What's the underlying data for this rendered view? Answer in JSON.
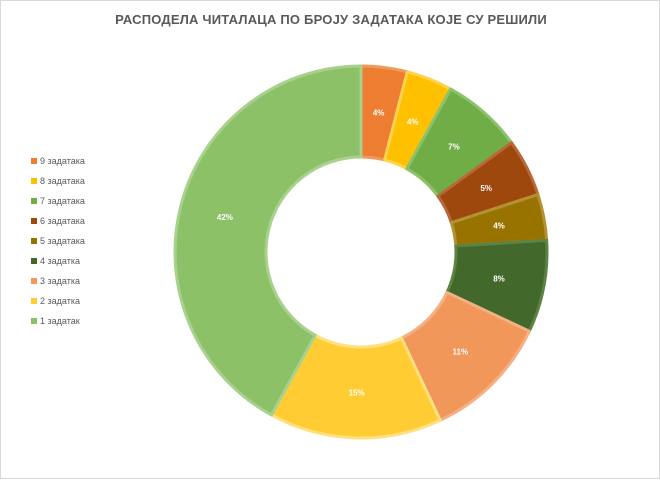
{
  "chart_data": {
    "type": "pie",
    "subtype": "doughnut",
    "title": "РАСПОДЕЛА ЧИТАЛАЦА ПО БРОЈУ ЗАДАТАКА КОЈЕ СУ РЕШИЛИ",
    "legend_position": "left",
    "slices": [
      {
        "label": "9 задатака",
        "value": 4,
        "display": "4%",
        "color": "#ED7D31",
        "edge": "#EF9A5C"
      },
      {
        "label": "8 задатака",
        "value": 4,
        "display": "4%",
        "color": "#FFC000",
        "edge": "#FFD24D"
      },
      {
        "label": "7 задатака",
        "value": 7,
        "display": "7%",
        "color": "#70AD47",
        "edge": "#8DC26B"
      },
      {
        "label": "6 задатака",
        "value": 5,
        "display": "5%",
        "color": "#9E480E",
        "edge": "#B8693A"
      },
      {
        "label": "5 задатака",
        "value": 4,
        "display": "4%",
        "color": "#997300",
        "edge": "#B39233"
      },
      {
        "label": "4 задатка",
        "value": 8,
        "display": "8%",
        "color": "#43682B",
        "edge": "#5C8343"
      },
      {
        "label": "3 задатка",
        "value": 11,
        "display": "11%",
        "color": "#F1975A",
        "edge": "#F4B083"
      },
      {
        "label": "2 задатка",
        "value": 15,
        "display": "15%",
        "color": "#FFCD33",
        "edge": "#FFE080"
      },
      {
        "label": "1 задатак",
        "value": 42,
        "display": "42%",
        "color": "#8CC168",
        "edge": "#A9D18E"
      }
    ]
  }
}
